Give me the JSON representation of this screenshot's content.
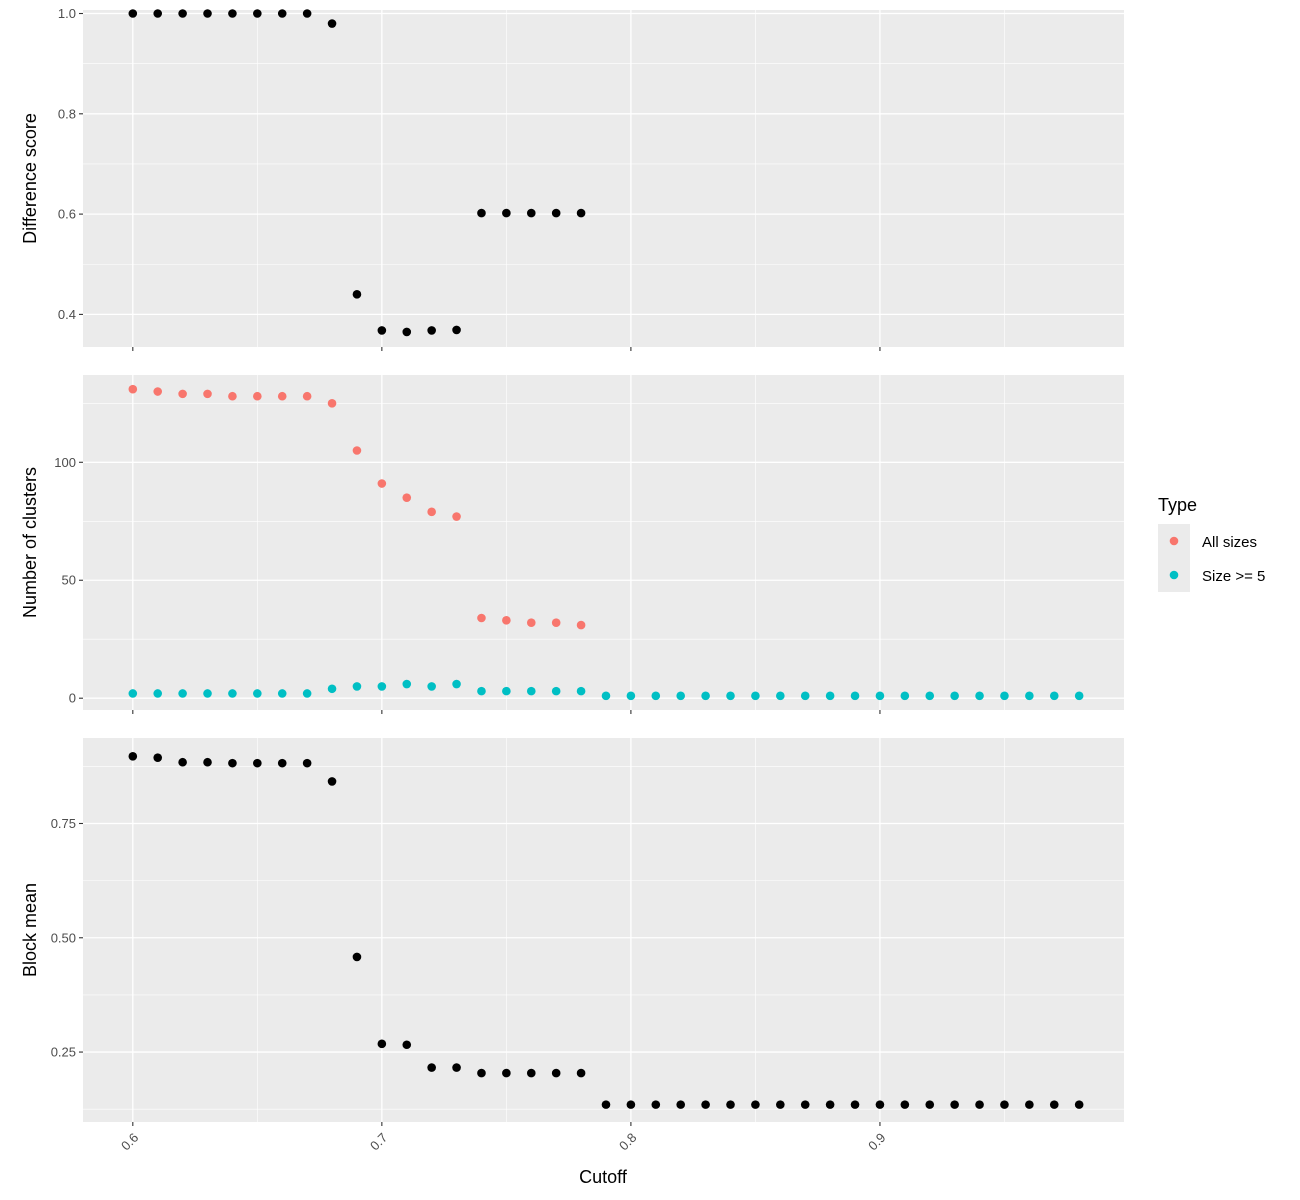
{
  "chart_data": [
    {
      "type": "scatter",
      "panel": "top",
      "ylabel": "Difference score",
      "xlim": [
        0.58,
        0.998
      ],
      "ylim": [
        0.335,
        1.007
      ],
      "y_ticks": [
        0.4,
        0.6,
        0.8,
        1.0
      ],
      "y_tick_labels": [
        "0.4",
        "0.6",
        "0.8",
        "1.0"
      ],
      "grid": true,
      "series": [
        {
          "color": "#000000",
          "points": [
            [
              0.6,
              1.0
            ],
            [
              0.61,
              1.0
            ],
            [
              0.62,
              1.0
            ],
            [
              0.63,
              1.0
            ],
            [
              0.64,
              1.0
            ],
            [
              0.65,
              1.0
            ],
            [
              0.66,
              1.0
            ],
            [
              0.67,
              1.0
            ],
            [
              0.68,
              0.98
            ],
            [
              0.69,
              0.44
            ],
            [
              0.7,
              0.368
            ],
            [
              0.71,
              0.365
            ],
            [
              0.72,
              0.368
            ],
            [
              0.73,
              0.369
            ],
            [
              0.74,
              0.602
            ],
            [
              0.75,
              0.602
            ],
            [
              0.76,
              0.602
            ],
            [
              0.77,
              0.602
            ],
            [
              0.78,
              0.602
            ]
          ]
        }
      ]
    },
    {
      "type": "scatter",
      "panel": "middle",
      "ylabel": "Number of clusters",
      "xlim": [
        0.58,
        0.998
      ],
      "ylim": [
        -5,
        137
      ],
      "y_ticks": [
        0,
        50,
        100
      ],
      "y_tick_labels": [
        "0",
        "50",
        "100"
      ],
      "grid": true,
      "legend": {
        "title": "Type",
        "position": "right",
        "entries": [
          {
            "label": "All sizes",
            "color": "#F8766D"
          },
          {
            "label": "Size >= 5",
            "color": "#00BFC4"
          }
        ]
      },
      "series": [
        {
          "name": "All sizes",
          "color": "#F8766D",
          "points": [
            [
              0.6,
              131
            ],
            [
              0.61,
              130
            ],
            [
              0.62,
              129
            ],
            [
              0.63,
              129
            ],
            [
              0.64,
              128
            ],
            [
              0.65,
              128
            ],
            [
              0.66,
              128
            ],
            [
              0.67,
              128
            ],
            [
              0.68,
              125
            ],
            [
              0.69,
              105
            ],
            [
              0.7,
              91
            ],
            [
              0.71,
              85
            ],
            [
              0.72,
              79
            ],
            [
              0.73,
              77
            ],
            [
              0.74,
              34
            ],
            [
              0.75,
              33
            ],
            [
              0.76,
              32
            ],
            [
              0.77,
              32
            ],
            [
              0.78,
              31
            ]
          ]
        },
        {
          "name": "Size >= 5",
          "color": "#00BFC4",
          "points": [
            [
              0.6,
              2
            ],
            [
              0.61,
              2
            ],
            [
              0.62,
              2
            ],
            [
              0.63,
              2
            ],
            [
              0.64,
              2
            ],
            [
              0.65,
              2
            ],
            [
              0.66,
              2
            ],
            [
              0.67,
              2
            ],
            [
              0.68,
              4
            ],
            [
              0.69,
              5
            ],
            [
              0.7,
              5
            ],
            [
              0.71,
              6
            ],
            [
              0.72,
              5
            ],
            [
              0.73,
              6
            ],
            [
              0.74,
              3
            ],
            [
              0.75,
              3
            ],
            [
              0.76,
              3
            ],
            [
              0.77,
              3
            ],
            [
              0.78,
              3
            ],
            [
              0.79,
              1
            ],
            [
              0.8,
              1
            ],
            [
              0.81,
              1
            ],
            [
              0.82,
              1
            ],
            [
              0.83,
              1
            ],
            [
              0.84,
              1
            ],
            [
              0.85,
              1
            ],
            [
              0.86,
              1
            ],
            [
              0.87,
              1
            ],
            [
              0.88,
              1
            ],
            [
              0.89,
              1
            ],
            [
              0.9,
              1
            ],
            [
              0.91,
              1
            ],
            [
              0.92,
              1
            ],
            [
              0.93,
              1
            ],
            [
              0.94,
              1
            ],
            [
              0.95,
              1
            ],
            [
              0.96,
              1
            ],
            [
              0.97,
              1
            ],
            [
              0.98,
              1
            ]
          ]
        }
      ]
    },
    {
      "type": "scatter",
      "panel": "bottom",
      "ylabel": "Block mean",
      "xlabel": "Cutoff",
      "xlim": [
        0.58,
        0.998
      ],
      "ylim": [
        0.097,
        0.937
      ],
      "x_ticks": [
        0.6,
        0.7,
        0.8,
        0.9
      ],
      "x_tick_labels": [
        "0.6",
        "0.7",
        "0.8",
        "0.9"
      ],
      "y_ticks": [
        0.25,
        0.5,
        0.75
      ],
      "y_tick_labels": [
        "0.25",
        "0.50",
        "0.75"
      ],
      "grid": true,
      "series": [
        {
          "color": "#000000",
          "points": [
            [
              0.6,
              0.897
            ],
            [
              0.61,
              0.894
            ],
            [
              0.62,
              0.884
            ],
            [
              0.63,
              0.884
            ],
            [
              0.64,
              0.882
            ],
            [
              0.65,
              0.882
            ],
            [
              0.66,
              0.882
            ],
            [
              0.67,
              0.882
            ],
            [
              0.68,
              0.842
            ],
            [
              0.69,
              0.458
            ],
            [
              0.7,
              0.268
            ],
            [
              0.71,
              0.266
            ],
            [
              0.72,
              0.216
            ],
            [
              0.73,
              0.216
            ],
            [
              0.74,
              0.204
            ],
            [
              0.75,
              0.204
            ],
            [
              0.76,
              0.204
            ],
            [
              0.77,
              0.204
            ],
            [
              0.78,
              0.204
            ],
            [
              0.79,
              0.135
            ],
            [
              0.8,
              0.135
            ],
            [
              0.81,
              0.135
            ],
            [
              0.82,
              0.135
            ],
            [
              0.83,
              0.135
            ],
            [
              0.84,
              0.135
            ],
            [
              0.85,
              0.135
            ],
            [
              0.86,
              0.135
            ],
            [
              0.87,
              0.135
            ],
            [
              0.88,
              0.135
            ],
            [
              0.89,
              0.135
            ],
            [
              0.9,
              0.135
            ],
            [
              0.91,
              0.135
            ],
            [
              0.92,
              0.135
            ],
            [
              0.93,
              0.135
            ],
            [
              0.94,
              0.135
            ],
            [
              0.95,
              0.135
            ],
            [
              0.96,
              0.135
            ],
            [
              0.97,
              0.135
            ],
            [
              0.98,
              0.135
            ]
          ]
        }
      ]
    }
  ]
}
